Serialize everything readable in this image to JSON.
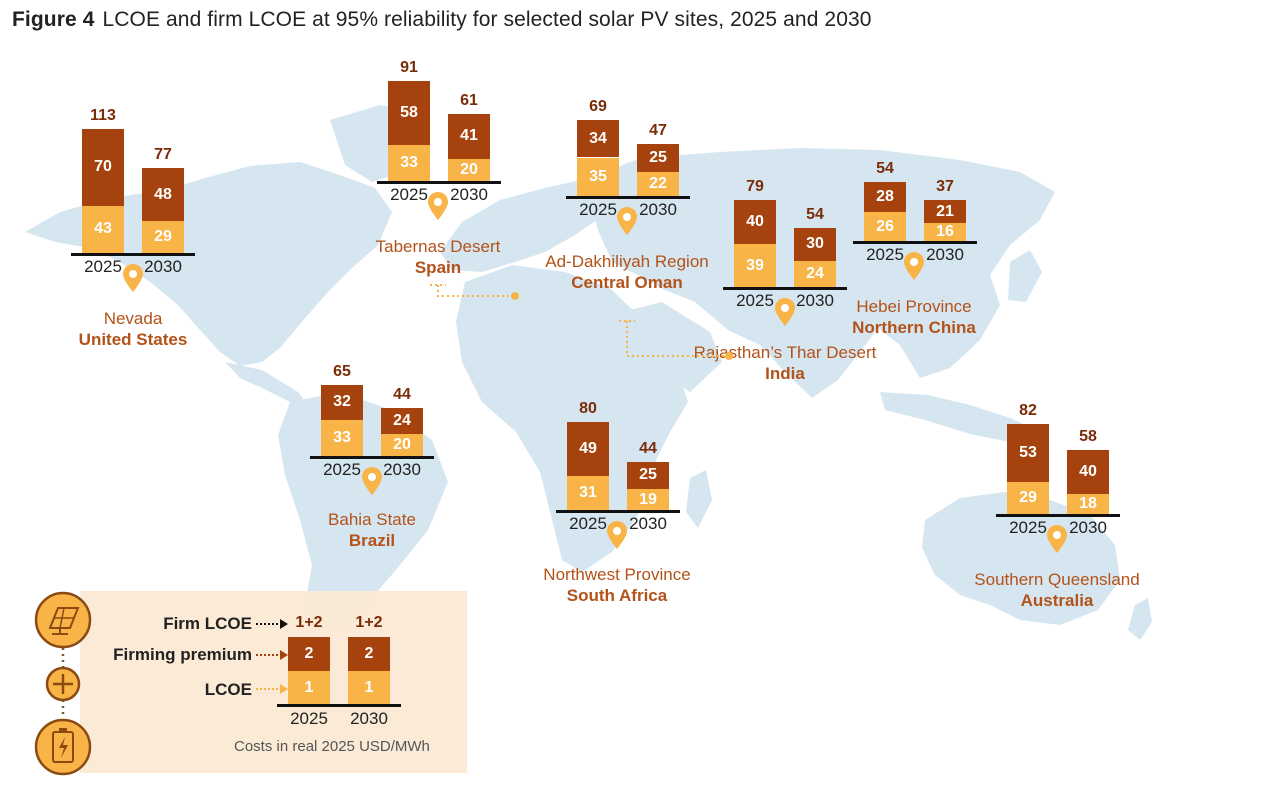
{
  "title": {
    "figure": "Figure 4",
    "text": "LCOE and firm LCOE at 95% reliability for selected solar PV sites, 2025 and 2030"
  },
  "colors": {
    "firming_premium": "#a6420e",
    "lcoe": "#f8b446",
    "map": "#d6e6f1",
    "label": "#b35219",
    "legend_bg": "#fbead4"
  },
  "chart_data": {
    "type": "bar",
    "stacked": true,
    "unit": "USD/MWh",
    "categories": [
      "2025",
      "2030"
    ],
    "series_order": [
      "LCOE",
      "Firming premium"
    ],
    "sites": [
      {
        "region": "Nevada",
        "country": "United States",
        "lcoe": [
          43,
          29
        ],
        "premium": [
          70,
          48
        ],
        "firm": [
          113,
          77
        ]
      },
      {
        "region": "Tabernas Desert",
        "country": "Spain",
        "lcoe": [
          33,
          20
        ],
        "premium": [
          58,
          41
        ],
        "firm": [
          91,
          61
        ]
      },
      {
        "region": "Ad-Dakhiliyah Region",
        "country": "Central Oman",
        "lcoe": [
          35,
          22
        ],
        "premium": [
          34,
          25
        ],
        "firm": [
          69,
          47
        ]
      },
      {
        "region": "Rajasthan’s Thar Desert",
        "country": "India",
        "lcoe": [
          39,
          24
        ],
        "premium": [
          40,
          30
        ],
        "firm": [
          79,
          54
        ]
      },
      {
        "region": "Hebei Province",
        "country": "Northern China",
        "lcoe": [
          26,
          16
        ],
        "premium": [
          28,
          21
        ],
        "firm": [
          54,
          37
        ]
      },
      {
        "region": "Bahia State",
        "country": "Brazil",
        "lcoe": [
          33,
          20
        ],
        "premium": [
          32,
          24
        ],
        "firm": [
          65,
          44
        ]
      },
      {
        "region": "Northwest Province",
        "country": "South Africa",
        "lcoe": [
          31,
          19
        ],
        "premium": [
          49,
          25
        ],
        "firm": [
          80,
          44
        ]
      },
      {
        "region": "Southern Queensland",
        "country": "Australia",
        "lcoe": [
          29,
          18
        ],
        "premium": [
          53,
          40
        ],
        "firm": [
          82,
          58
        ]
      }
    ]
  },
  "legend": {
    "firm_label": "Firm LCOE",
    "premium_label": "Firming premium",
    "lcoe_label": "LCOE",
    "firm_value": "1+2",
    "premium_value": "2",
    "lcoe_value": "1",
    "years": [
      "2025",
      "2030"
    ],
    "units": "Costs in real 2025 USD/MWh",
    "icons": [
      "solar-panel-icon",
      "plus-icon",
      "battery-icon"
    ]
  }
}
